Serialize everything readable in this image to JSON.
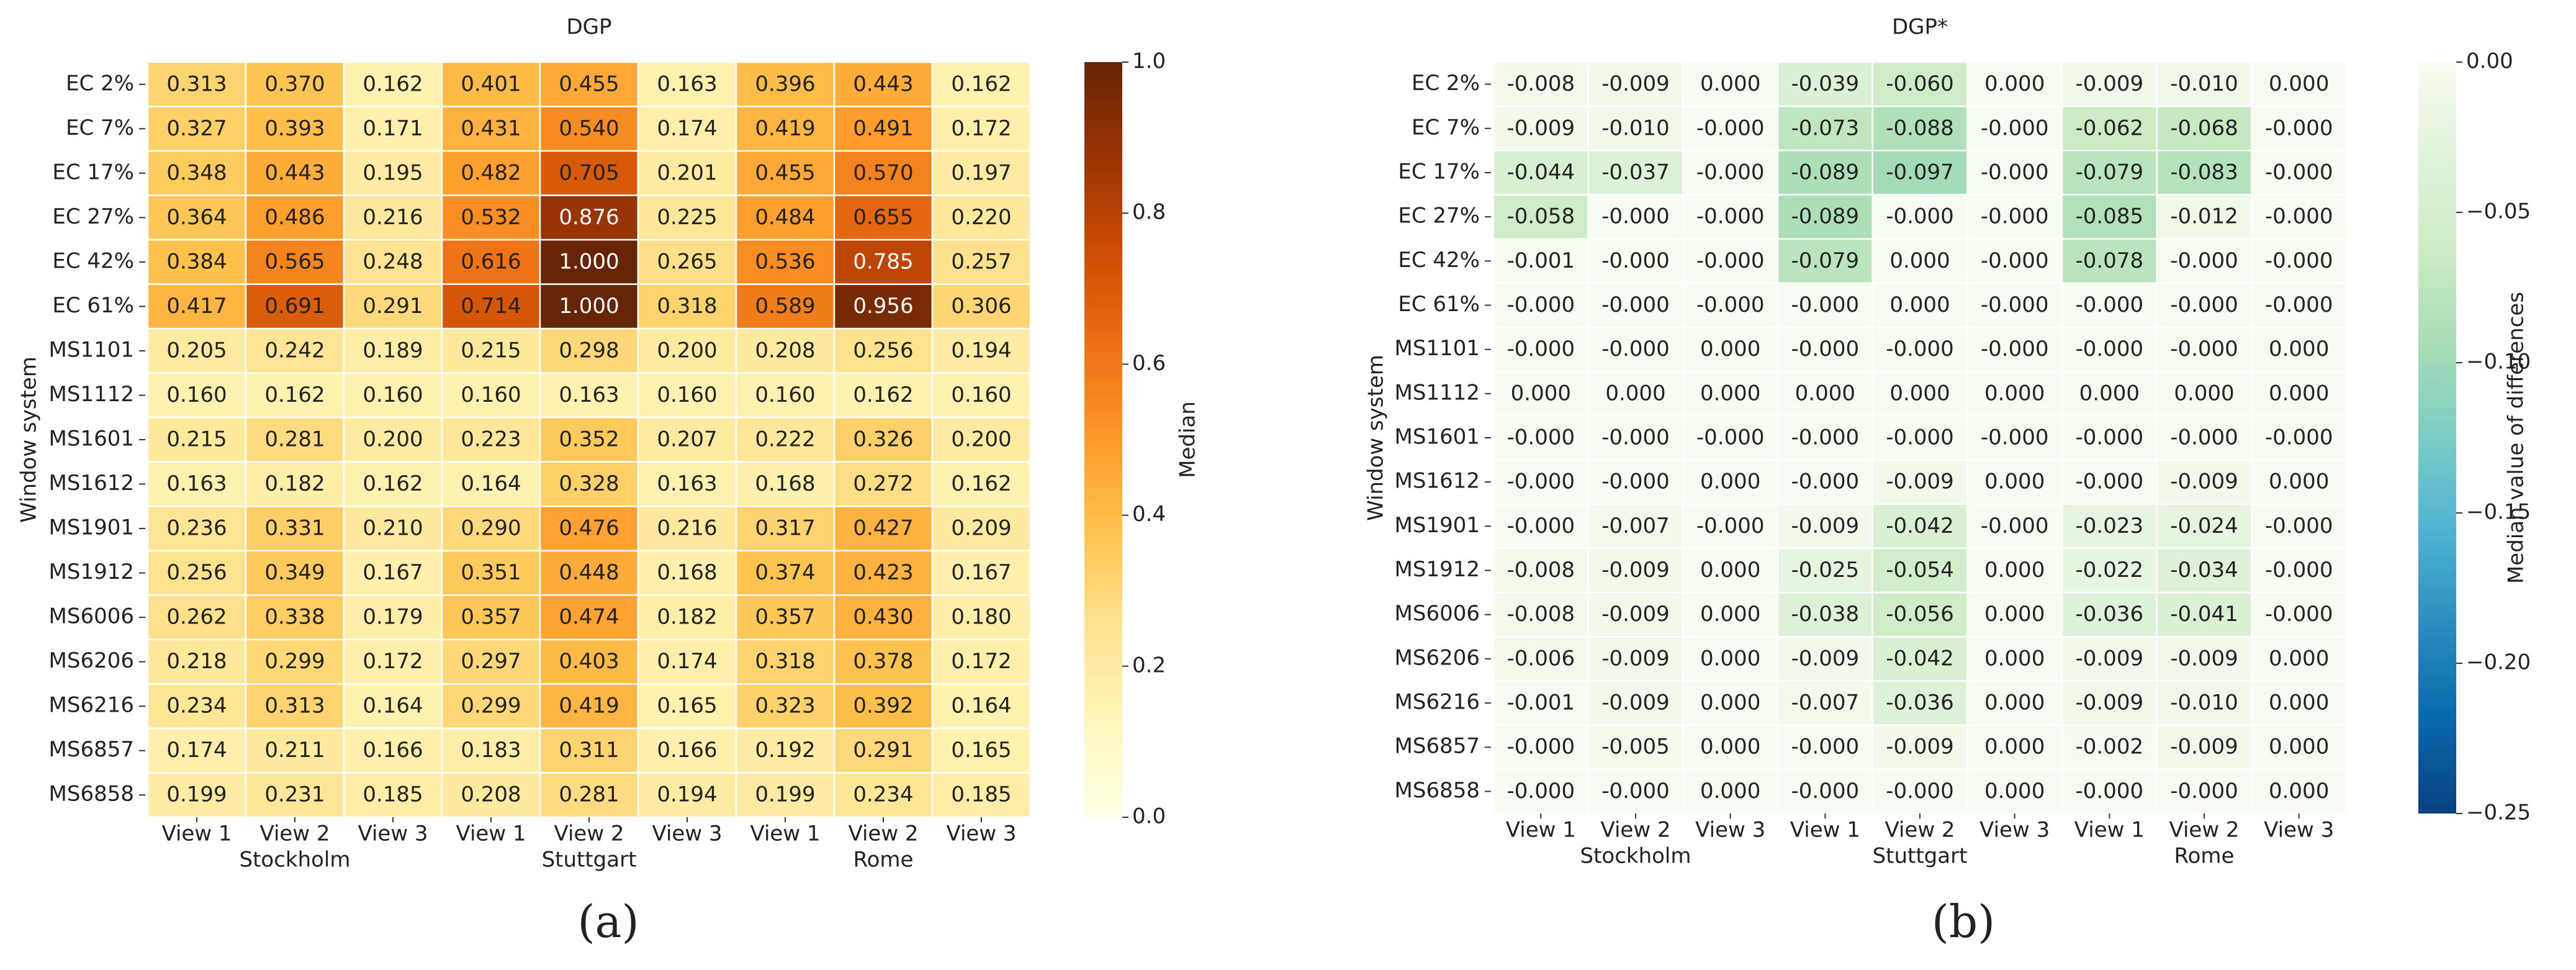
{
  "chart_data": [
    {
      "type": "heatmap",
      "title": "DGP",
      "ylabel": "Window system",
      "panel_label": "(a)",
      "categories": [
        "View 1",
        "View 2",
        "View 3",
        "View 1",
        "View 2",
        "View 3",
        "View 1",
        "View 2",
        "View 3"
      ],
      "groups": [
        "Stockholm",
        "Stuttgart",
        "Rome"
      ],
      "rows": [
        "EC 2%",
        "EC 7%",
        "EC 17%",
        "EC 27%",
        "EC 42%",
        "EC 61%",
        "MS1101",
        "MS1112",
        "MS1601",
        "MS1612",
        "MS1901",
        "MS1912",
        "MS6006",
        "MS6206",
        "MS6216",
        "MS6857",
        "MS6858"
      ],
      "values": [
        [
          0.313,
          0.37,
          0.162,
          0.401,
          0.455,
          0.163,
          0.396,
          0.443,
          0.162
        ],
        [
          0.327,
          0.393,
          0.171,
          0.431,
          0.54,
          0.174,
          0.419,
          0.491,
          0.172
        ],
        [
          0.348,
          0.443,
          0.195,
          0.482,
          0.705,
          0.201,
          0.455,
          0.57,
          0.197
        ],
        [
          0.364,
          0.486,
          0.216,
          0.532,
          0.876,
          0.225,
          0.484,
          0.655,
          0.22
        ],
        [
          0.384,
          0.565,
          0.248,
          0.616,
          1.0,
          0.265,
          0.536,
          0.785,
          0.257
        ],
        [
          0.417,
          0.691,
          0.291,
          0.714,
          1.0,
          0.318,
          0.589,
          0.956,
          0.306
        ],
        [
          0.205,
          0.242,
          0.189,
          0.215,
          0.298,
          0.2,
          0.208,
          0.256,
          0.194
        ],
        [
          0.16,
          0.162,
          0.16,
          0.16,
          0.163,
          0.16,
          0.16,
          0.162,
          0.16
        ],
        [
          0.215,
          0.281,
          0.2,
          0.223,
          0.352,
          0.207,
          0.222,
          0.326,
          0.2
        ],
        [
          0.163,
          0.182,
          0.162,
          0.164,
          0.328,
          0.163,
          0.168,
          0.272,
          0.162
        ],
        [
          0.236,
          0.331,
          0.21,
          0.29,
          0.476,
          0.216,
          0.317,
          0.427,
          0.209
        ],
        [
          0.256,
          0.349,
          0.167,
          0.351,
          0.448,
          0.168,
          0.374,
          0.423,
          0.167
        ],
        [
          0.262,
          0.338,
          0.179,
          0.357,
          0.474,
          0.182,
          0.357,
          0.43,
          0.18
        ],
        [
          0.218,
          0.299,
          0.172,
          0.297,
          0.403,
          0.174,
          0.318,
          0.378,
          0.172
        ],
        [
          0.234,
          0.313,
          0.164,
          0.299,
          0.419,
          0.165,
          0.323,
          0.392,
          0.164
        ],
        [
          0.174,
          0.211,
          0.166,
          0.183,
          0.311,
          0.166,
          0.192,
          0.291,
          0.165
        ],
        [
          0.199,
          0.231,
          0.185,
          0.208,
          0.281,
          0.194,
          0.199,
          0.234,
          0.185
        ]
      ],
      "value_labels": [
        [
          "0.313",
          "0.370",
          "0.162",
          "0.401",
          "0.455",
          "0.163",
          "0.396",
          "0.443",
          "0.162"
        ],
        [
          "0.327",
          "0.393",
          "0.171",
          "0.431",
          "0.540",
          "0.174",
          "0.419",
          "0.491",
          "0.172"
        ],
        [
          "0.348",
          "0.443",
          "0.195",
          "0.482",
          "0.705",
          "0.201",
          "0.455",
          "0.570",
          "0.197"
        ],
        [
          "0.364",
          "0.486",
          "0.216",
          "0.532",
          "0.876",
          "0.225",
          "0.484",
          "0.655",
          "0.220"
        ],
        [
          "0.384",
          "0.565",
          "0.248",
          "0.616",
          "1.000",
          "0.265",
          "0.536",
          "0.785",
          "0.257"
        ],
        [
          "0.417",
          "0.691",
          "0.291",
          "0.714",
          "1.000",
          "0.318",
          "0.589",
          "0.956",
          "0.306"
        ],
        [
          "0.205",
          "0.242",
          "0.189",
          "0.215",
          "0.298",
          "0.200",
          "0.208",
          "0.256",
          "0.194"
        ],
        [
          "0.160",
          "0.162",
          "0.160",
          "0.160",
          "0.163",
          "0.160",
          "0.160",
          "0.162",
          "0.160"
        ],
        [
          "0.215",
          "0.281",
          "0.200",
          "0.223",
          "0.352",
          "0.207",
          "0.222",
          "0.326",
          "0.200"
        ],
        [
          "0.163",
          "0.182",
          "0.162",
          "0.164",
          "0.328",
          "0.163",
          "0.168",
          "0.272",
          "0.162"
        ],
        [
          "0.236",
          "0.331",
          "0.210",
          "0.290",
          "0.476",
          "0.216",
          "0.317",
          "0.427",
          "0.209"
        ],
        [
          "0.256",
          "0.349",
          "0.167",
          "0.351",
          "0.448",
          "0.168",
          "0.374",
          "0.423",
          "0.167"
        ],
        [
          "0.262",
          "0.338",
          "0.179",
          "0.357",
          "0.474",
          "0.182",
          "0.357",
          "0.430",
          "0.180"
        ],
        [
          "0.218",
          "0.299",
          "0.172",
          "0.297",
          "0.403",
          "0.174",
          "0.318",
          "0.378",
          "0.172"
        ],
        [
          "0.234",
          "0.313",
          "0.164",
          "0.299",
          "0.419",
          "0.165",
          "0.323",
          "0.392",
          "0.164"
        ],
        [
          "0.174",
          "0.211",
          "0.166",
          "0.183",
          "0.311",
          "0.166",
          "0.192",
          "0.291",
          "0.165"
        ],
        [
          "0.199",
          "0.231",
          "0.185",
          "0.208",
          "0.281",
          "0.194",
          "0.199",
          "0.234",
          "0.185"
        ]
      ],
      "colorbar_label": "Median",
      "colorbar_lim": [
        0,
        1
      ],
      "colorbar_ticks": [
        {
          "value": 0,
          "label": "0.0"
        },
        {
          "value": 0.2,
          "label": "0.2"
        },
        {
          "value": 0.4,
          "label": "0.4"
        },
        {
          "value": 0.6,
          "label": "0.6"
        },
        {
          "value": 0.8,
          "label": "0.8"
        },
        {
          "value": 1,
          "label": "1.0"
        }
      ],
      "colormap": [
        "#ffffe5",
        "#fff7bc",
        "#fee391",
        "#fec44f",
        "#fe9929",
        "#ec7014",
        "#cc4c02",
        "#993404",
        "#662506"
      ]
    },
    {
      "type": "heatmap",
      "title": "DGP*",
      "ylabel": "Window system",
      "panel_label": "(b)",
      "categories": [
        "View 1",
        "View 2",
        "View 3",
        "View 1",
        "View 2",
        "View 3",
        "View 1",
        "View 2",
        "View 3"
      ],
      "groups": [
        "Stockholm",
        "Stuttgart",
        "Rome"
      ],
      "rows": [
        "EC 2%",
        "EC 7%",
        "EC 17%",
        "EC 27%",
        "EC 42%",
        "EC 61%",
        "MS1101",
        "MS1112",
        "MS1601",
        "MS1612",
        "MS1901",
        "MS1912",
        "MS6006",
        "MS6206",
        "MS6216",
        "MS6857",
        "MS6858"
      ],
      "values": [
        [
          -0.008,
          -0.009,
          0,
          -0.039,
          -0.06,
          0,
          -0.009,
          -0.01,
          0
        ],
        [
          -0.009,
          -0.01,
          0,
          -0.073,
          -0.088,
          0,
          -0.062,
          -0.068,
          0
        ],
        [
          -0.044,
          -0.037,
          0,
          -0.089,
          -0.097,
          0,
          -0.079,
          -0.083,
          0
        ],
        [
          -0.058,
          0,
          0,
          -0.089,
          0,
          0,
          -0.085,
          -0.012,
          0
        ],
        [
          -0.001,
          0,
          0,
          -0.079,
          0,
          0,
          -0.078,
          0,
          0
        ],
        [
          0,
          0,
          0,
          0,
          0,
          0,
          0,
          0,
          0
        ],
        [
          0,
          0,
          0,
          0,
          0,
          0,
          0,
          0,
          0
        ],
        [
          0,
          0,
          0,
          0,
          0,
          0,
          0,
          0,
          0
        ],
        [
          0,
          0,
          0,
          0,
          0,
          0,
          0,
          0,
          0
        ],
        [
          0,
          0,
          0,
          0,
          -0.009,
          0,
          0,
          -0.009,
          0
        ],
        [
          0,
          -0.007,
          0,
          -0.009,
          -0.042,
          0,
          -0.023,
          -0.024,
          0
        ],
        [
          -0.008,
          -0.009,
          0,
          -0.025,
          -0.054,
          0,
          -0.022,
          -0.034,
          0
        ],
        [
          -0.008,
          -0.009,
          0,
          -0.038,
          -0.056,
          0,
          -0.036,
          -0.041,
          0
        ],
        [
          -0.006,
          -0.009,
          0,
          -0.009,
          -0.042,
          0,
          -0.009,
          -0.009,
          0
        ],
        [
          -0.001,
          -0.009,
          0,
          -0.007,
          -0.036,
          0,
          -0.009,
          -0.01,
          0
        ],
        [
          0,
          -0.005,
          0,
          0,
          -0.009,
          0,
          -0.002,
          -0.009,
          0
        ],
        [
          0,
          0,
          0,
          0,
          0,
          0,
          0,
          0,
          0
        ]
      ],
      "value_labels": [
        [
          "-0.008",
          "-0.009",
          "0.000",
          "-0.039",
          "-0.060",
          "0.000",
          "-0.009",
          "-0.010",
          "0.000"
        ],
        [
          "-0.009",
          "-0.010",
          "-0.000",
          "-0.073",
          "-0.088",
          "-0.000",
          "-0.062",
          "-0.068",
          "-0.000"
        ],
        [
          "-0.044",
          "-0.037",
          "-0.000",
          "-0.089",
          "-0.097",
          "-0.000",
          "-0.079",
          "-0.083",
          "-0.000"
        ],
        [
          "-0.058",
          "-0.000",
          "-0.000",
          "-0.089",
          "-0.000",
          "-0.000",
          "-0.085",
          "-0.012",
          "-0.000"
        ],
        [
          "-0.001",
          "-0.000",
          "-0.000",
          "-0.079",
          "0.000",
          "-0.000",
          "-0.078",
          "-0.000",
          "-0.000"
        ],
        [
          "-0.000",
          "-0.000",
          "-0.000",
          "-0.000",
          "0.000",
          "-0.000",
          "-0.000",
          "-0.000",
          "-0.000"
        ],
        [
          "-0.000",
          "-0.000",
          "0.000",
          "-0.000",
          "-0.000",
          "-0.000",
          "-0.000",
          "-0.000",
          "0.000"
        ],
        [
          "0.000",
          "0.000",
          "0.000",
          "0.000",
          "0.000",
          "0.000",
          "0.000",
          "0.000",
          "0.000"
        ],
        [
          "-0.000",
          "-0.000",
          "-0.000",
          "-0.000",
          "-0.000",
          "-0.000",
          "-0.000",
          "-0.000",
          "-0.000"
        ],
        [
          "-0.000",
          "-0.000",
          "0.000",
          "-0.000",
          "-0.009",
          "0.000",
          "-0.000",
          "-0.009",
          "0.000"
        ],
        [
          "-0.000",
          "-0.007",
          "-0.000",
          "-0.009",
          "-0.042",
          "-0.000",
          "-0.023",
          "-0.024",
          "-0.000"
        ],
        [
          "-0.008",
          "-0.009",
          "0.000",
          "-0.025",
          "-0.054",
          "0.000",
          "-0.022",
          "-0.034",
          "-0.000"
        ],
        [
          "-0.008",
          "-0.009",
          "0.000",
          "-0.038",
          "-0.056",
          "0.000",
          "-0.036",
          "-0.041",
          "-0.000"
        ],
        [
          "-0.006",
          "-0.009",
          "0.000",
          "-0.009",
          "-0.042",
          "0.000",
          "-0.009",
          "-0.009",
          "0.000"
        ],
        [
          "-0.001",
          "-0.009",
          "0.000",
          "-0.007",
          "-0.036",
          "0.000",
          "-0.009",
          "-0.010",
          "0.000"
        ],
        [
          "-0.000",
          "-0.005",
          "0.000",
          "-0.000",
          "-0.009",
          "0.000",
          "-0.002",
          "-0.009",
          "0.000"
        ],
        [
          "-0.000",
          "-0.000",
          "0.000",
          "-0.000",
          "-0.000",
          "0.000",
          "-0.000",
          "-0.000",
          "0.000"
        ]
      ],
      "colorbar_label": "Median value of differences",
      "colorbar_lim": [
        -0.25,
        0
      ],
      "colorbar_ticks": [
        {
          "value": 0,
          "label": "0.00"
        },
        {
          "value": -0.05,
          "label": "−0.05"
        },
        {
          "value": -0.1,
          "label": "−0.10"
        },
        {
          "value": -0.15,
          "label": "−0.15"
        },
        {
          "value": -0.2,
          "label": "−0.20"
        },
        {
          "value": -0.25,
          "label": "−0.25"
        }
      ],
      "colormap": [
        "#084081",
        "#0868ac",
        "#2b8cbe",
        "#4eb3d3",
        "#7bccc4",
        "#a8ddb5",
        "#ccebc5",
        "#e0f3db",
        "#f7fcf0"
      ]
    }
  ]
}
